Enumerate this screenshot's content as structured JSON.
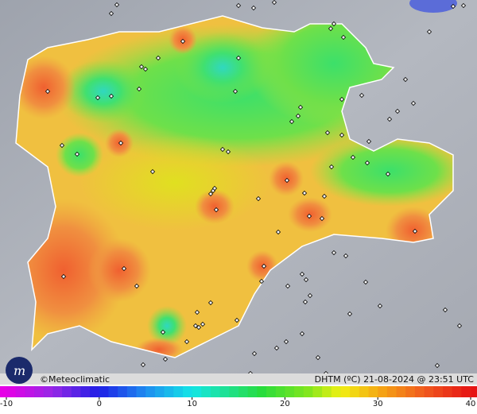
{
  "footer": {
    "credit": "©Meteoclimatic",
    "caption": "DHTM (ºC)  21-08-2024 @ 23:51 UTC"
  },
  "legend": {
    "ticks": [
      -10,
      0,
      10,
      20,
      30,
      40
    ]
  }
}
